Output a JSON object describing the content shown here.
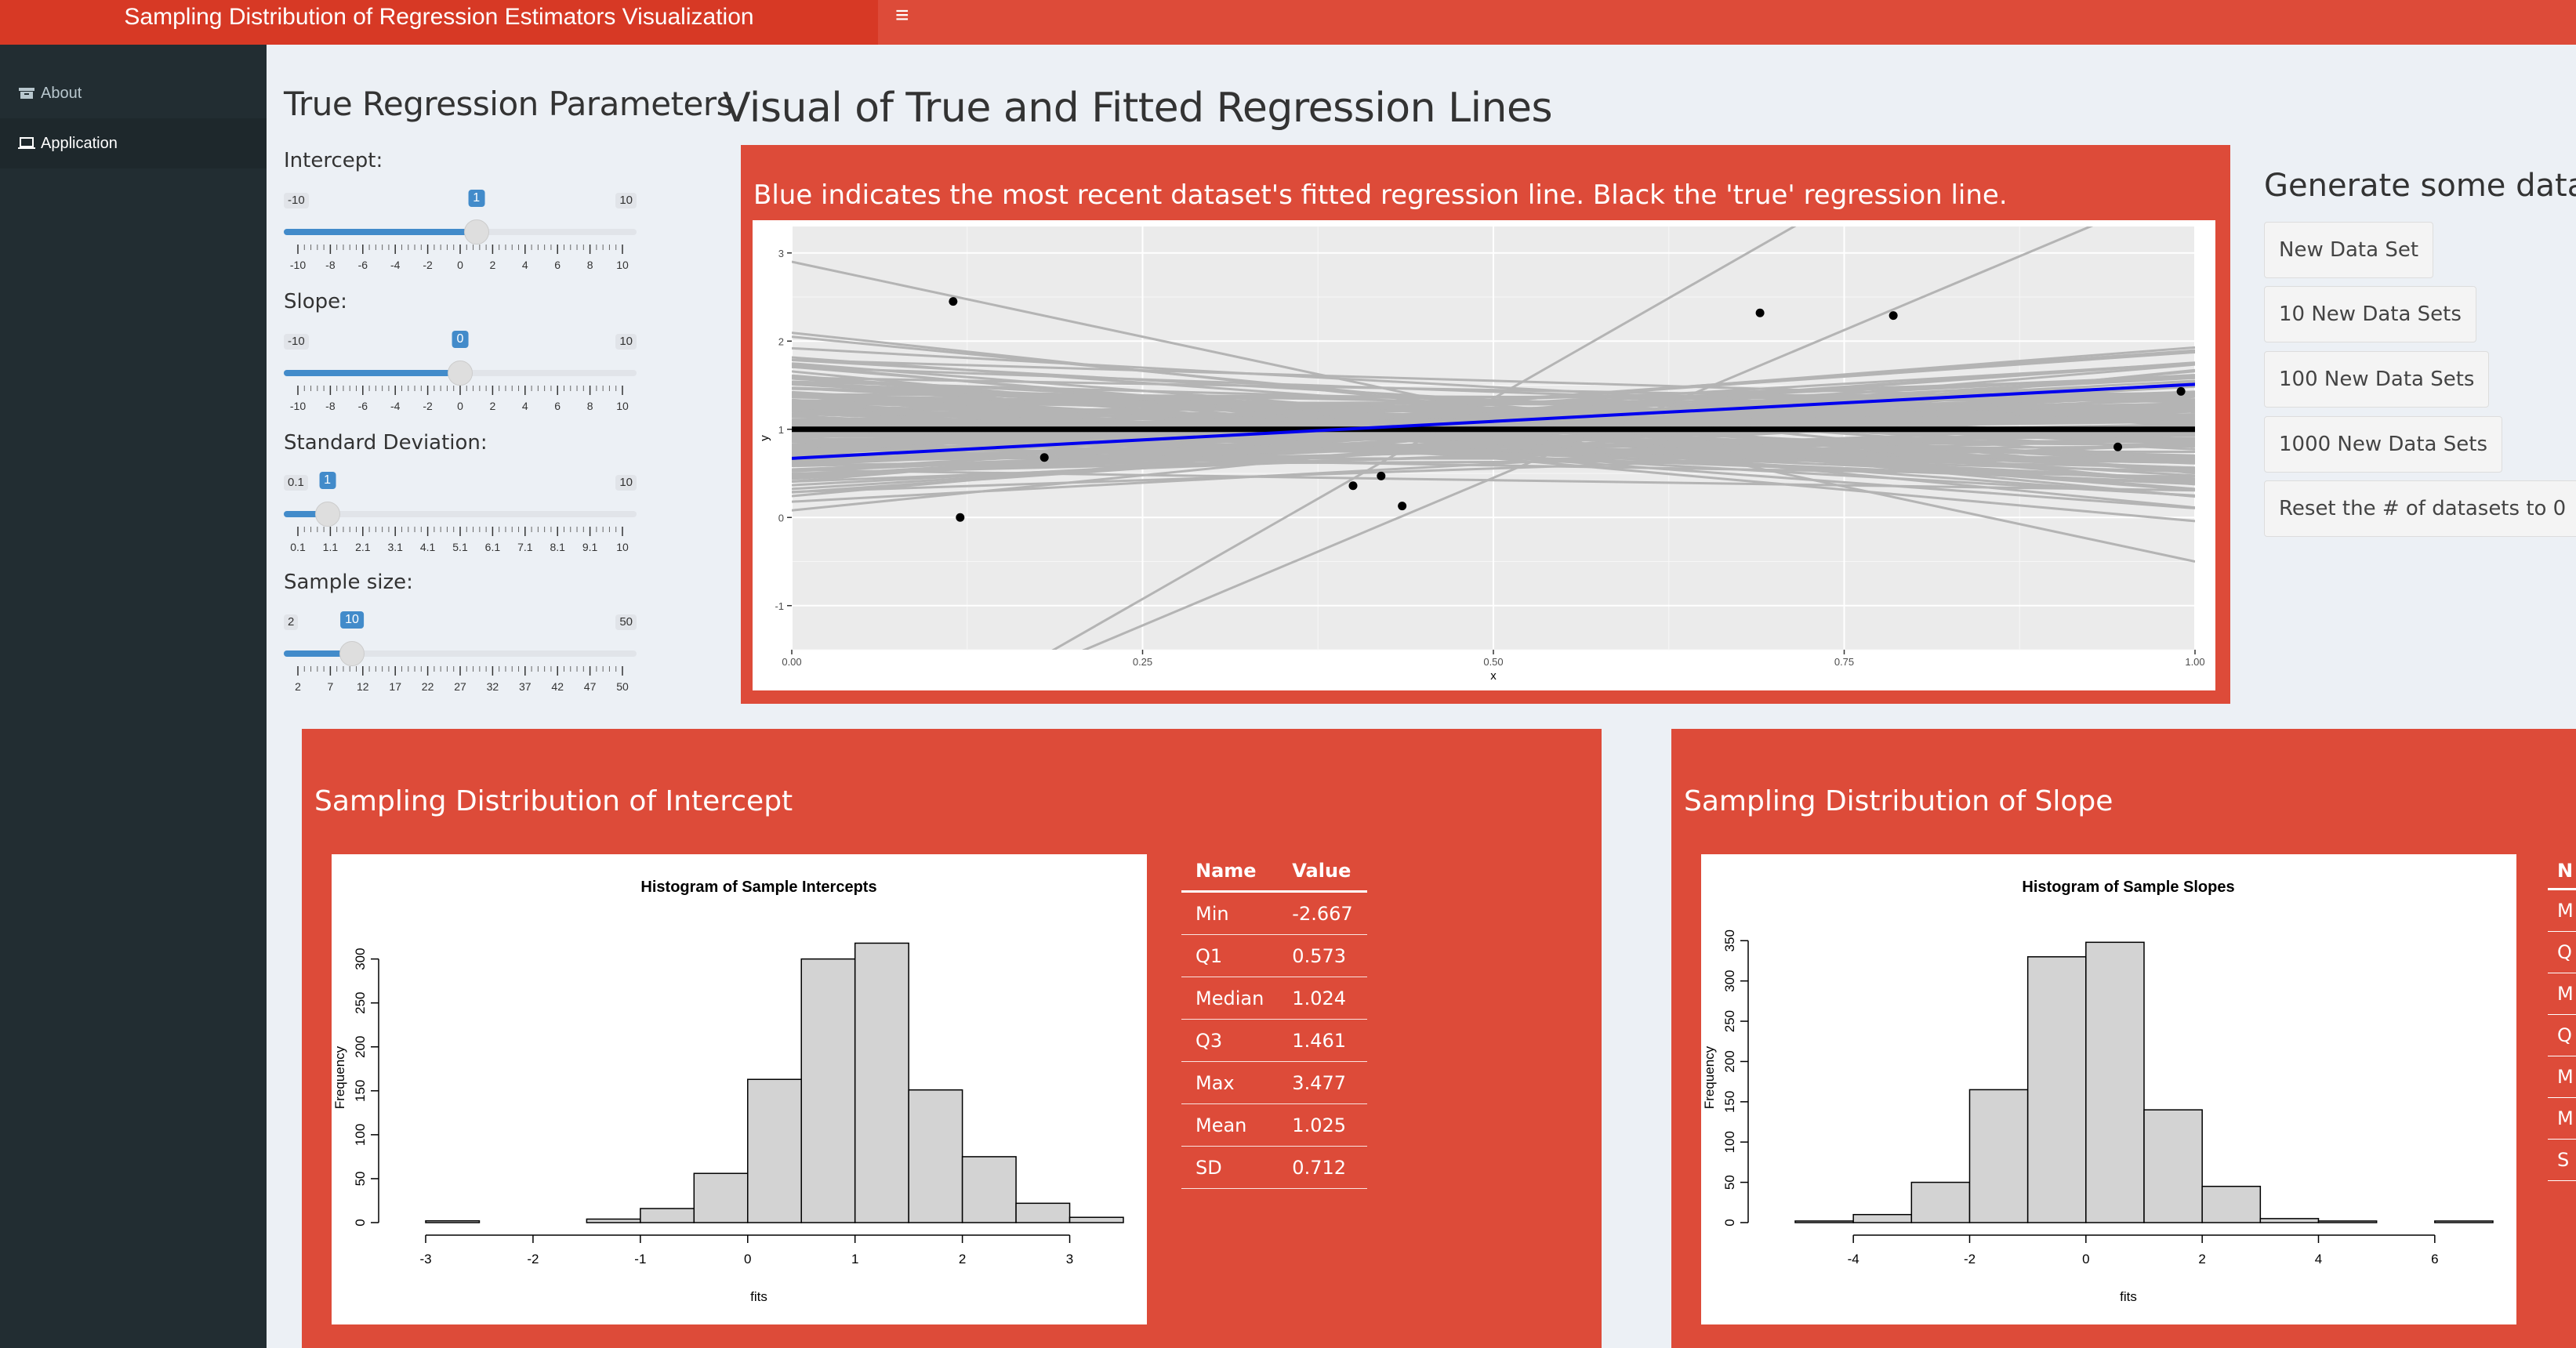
{
  "header": {
    "app_title": "Sampling Distribution of Regression Estimators Visualization",
    "toggle_icon": "hamburger-icon"
  },
  "sidebar": {
    "items": [
      {
        "label": "About",
        "icon": "archive-icon"
      },
      {
        "label": "Application",
        "icon": "laptop-icon"
      }
    ]
  },
  "params": {
    "title": "True Regression Parameters",
    "sliders": [
      {
        "label": "Intercept:",
        "min": -10,
        "max": 10,
        "value": 1,
        "min_label": "-10",
        "max_label": "10",
        "value_label": "1",
        "ticks": [
          "-10",
          "-8",
          "-6",
          "-4",
          "-2",
          "0",
          "2",
          "4",
          "6",
          "8",
          "10"
        ]
      },
      {
        "label": "Slope:",
        "min": -10,
        "max": 10,
        "value": 0,
        "min_label": "-10",
        "max_label": "10",
        "value_label": "0",
        "ticks": [
          "-10",
          "-8",
          "-6",
          "-4",
          "-2",
          "0",
          "2",
          "4",
          "6",
          "8",
          "10"
        ]
      },
      {
        "label": "Standard Deviation:",
        "min": 0.1,
        "max": 10,
        "value": 1,
        "min_label": "0.1",
        "max_label": "10",
        "value_label": "1",
        "ticks": [
          "0.1",
          "1.1",
          "2.1",
          "3.1",
          "4.1",
          "5.1",
          "6.1",
          "7.1",
          "8.1",
          "9.1",
          "10"
        ]
      },
      {
        "label": "Sample size:",
        "min": 2,
        "max": 50,
        "value": 10,
        "min_label": "2",
        "max_label": "50",
        "value_label": "10",
        "ticks": [
          "2",
          "7",
          "12",
          "17",
          "22",
          "27",
          "32",
          "37",
          "42",
          "47",
          "50"
        ]
      }
    ]
  },
  "visual": {
    "title": "Visual of True and Fitted Regression Lines",
    "panel_title": "Blue indicates the most recent dataset's fitted regression line. Black the 'true' regression line."
  },
  "generate": {
    "title": "Generate some data sets",
    "buttons": [
      "New Data Set",
      "10 New Data Sets",
      "100 New Data Sets",
      "1000 New Data Sets",
      "Reset the # of datasets to 0"
    ]
  },
  "intercept_panel": {
    "title": "Sampling Distribution of Intercept",
    "table": {
      "headers": [
        "Name",
        "Value"
      ],
      "rows": [
        [
          "Min",
          "-2.667"
        ],
        [
          "Q1",
          "0.573"
        ],
        [
          "Median",
          "1.024"
        ],
        [
          "Q3",
          "1.461"
        ],
        [
          "Max",
          "3.477"
        ],
        [
          "Mean",
          "1.025"
        ],
        [
          "SD",
          "0.712"
        ]
      ]
    }
  },
  "slope_panel": {
    "title": "Sampling Distribution of Slope",
    "table_visible_initials": [
      "N",
      "M",
      "Q",
      "M",
      "Q",
      "M",
      "M",
      "S"
    ]
  },
  "colors": {
    "header_red": "#dd4b39",
    "logo_red": "#d73925",
    "sidebar": "#222d32",
    "slider_blue": "#428bca",
    "fitted_line": "#0000ee",
    "true_line": "#000000"
  },
  "chart_data": [
    {
      "type": "scatter",
      "title": "",
      "xlabel": "x",
      "ylabel": "y",
      "xlim": [
        0,
        1
      ],
      "ylim": [
        -1.5,
        3.3
      ],
      "x_ticks": [
        "0.00",
        "0.25",
        "0.50",
        "0.75",
        "1.00"
      ],
      "y_ticks": [
        "-1",
        "0",
        "1",
        "2",
        "3"
      ],
      "grid": true,
      "points": [
        {
          "x": 0.115,
          "y": 2.45
        },
        {
          "x": 0.12,
          "y": 0.0
        },
        {
          "x": 0.18,
          "y": 0.68
        },
        {
          "x": 0.4,
          "y": 0.36
        },
        {
          "x": 0.42,
          "y": 0.47
        },
        {
          "x": 0.435,
          "y": 0.13
        },
        {
          "x": 0.69,
          "y": 2.32
        },
        {
          "x": 0.785,
          "y": 2.29
        },
        {
          "x": 0.945,
          "y": 0.8
        },
        {
          "x": 0.99,
          "y": 1.43
        }
      ],
      "true_line": {
        "intercept": 1,
        "slope": 0
      },
      "fitted_line": {
        "intercept": 0.67,
        "slope": 0.84
      },
      "background_line_count": 150,
      "background_color": "#b4b4b4"
    },
    {
      "type": "bar",
      "title": "Histogram of Sample Intercepts",
      "xlabel": "fits",
      "ylabel": "Frequency",
      "bin_edges": [
        -3,
        -2.5,
        -2,
        -1.5,
        -1,
        -0.5,
        0,
        0.5,
        1,
        1.5,
        2,
        2.5,
        3,
        3.5
      ],
      "values": [
        2,
        0,
        0,
        4,
        16,
        56,
        163,
        300,
        318,
        151,
        75,
        22,
        6
      ],
      "x_ticks": [
        "-3",
        "-2",
        "-1",
        "0",
        "1",
        "2",
        "3"
      ],
      "y_ticks": [
        "0",
        "50",
        "100",
        "150",
        "200",
        "250",
        "300"
      ],
      "ylim": [
        0,
        330
      ]
    },
    {
      "type": "bar",
      "title": "Histogram of Sample Slopes",
      "xlabel": "fits",
      "ylabel": "Frequency",
      "bin_edges": [
        -5,
        -4,
        -3,
        -2,
        -1,
        0,
        1,
        2,
        3,
        4,
        5,
        6,
        7
      ],
      "values": [
        2,
        10,
        50,
        165,
        330,
        348,
        140,
        45,
        5,
        2,
        0,
        2
      ],
      "x_ticks": [
        "-4",
        "-2",
        "0",
        "2",
        "4",
        "6"
      ],
      "y_ticks": [
        "0",
        "50",
        "100",
        "150",
        "200",
        "250",
        "300",
        "350"
      ],
      "ylim": [
        0,
        360
      ]
    }
  ]
}
